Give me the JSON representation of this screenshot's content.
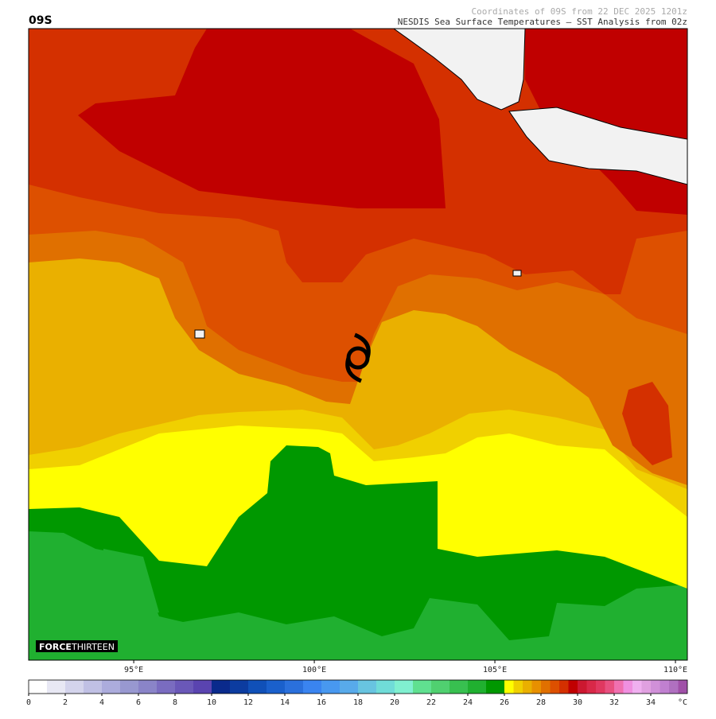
{
  "header": {
    "storm": "09S",
    "line1": "Coordinates of 09S from 22 DEC 2025 1201z",
    "line2": "NESDIS Sea Surface Temperatures — SST Analysis from 02z"
  },
  "map": {
    "lonlim": [
      92.09,
      110.33
    ],
    "lonticks": [
      {
        "value": 95,
        "label": "95°E"
      },
      {
        "value": 100,
        "label": "100°E"
      },
      {
        "value": 105,
        "label": "105°E"
      },
      {
        "value": 110,
        "label": "110°E"
      }
    ]
  },
  "logo": {
    "force": "FORCE",
    "thirteen": "THIRTEEN"
  },
  "colorbar": {
    "lim": [
      0,
      36
    ],
    "unit": "°C",
    "ticks": [
      0,
      2,
      4,
      6,
      8,
      10,
      12,
      14,
      16,
      18,
      20,
      22,
      24,
      26,
      28,
      30,
      32,
      34
    ],
    "levels": [
      0,
      1,
      2,
      3,
      4,
      5,
      6,
      7,
      8,
      9,
      10,
      11,
      12,
      13,
      14,
      15,
      16,
      17,
      18,
      19,
      20,
      21,
      22,
      23,
      24,
      25,
      26,
      26.5,
      27,
      27.5,
      28,
      28.5,
      29,
      29.5,
      30,
      30.5,
      31,
      31.5,
      32,
      32.5,
      33,
      33.5,
      34,
      34.5,
      35,
      35.5,
      36
    ],
    "colors": [
      "#ffffff",
      "#e8e8f4",
      "#d4d4ec",
      "#c0c0e4",
      "#acacdc",
      "#9898d0",
      "#8a84c8",
      "#7a6cc0",
      "#6a58b8",
      "#5a44b0",
      "#0a2a8c",
      "#0c3ca0",
      "#1050b8",
      "#1a60cc",
      "#2a70dc",
      "#3a84f0",
      "#4898f0",
      "#58aaea",
      "#68c4e0",
      "#70dcd8",
      "#80f0d0",
      "#60e090",
      "#50d070",
      "#38c050",
      "#20b030",
      "#009800",
      "#ffff00",
      "#f0d000",
      "#eab000",
      "#e89000",
      "#e07000",
      "#dd5000",
      "#d43000",
      "#c00000",
      "#cc1830",
      "#d82848",
      "#e03860",
      "#e85080",
      "#f070b0",
      "#f090e0",
      "#f0b0f0",
      "#e0a0e0",
      "#d090d8",
      "#c080d0",
      "#b070c0",
      "#a050a8"
    ]
  }
}
